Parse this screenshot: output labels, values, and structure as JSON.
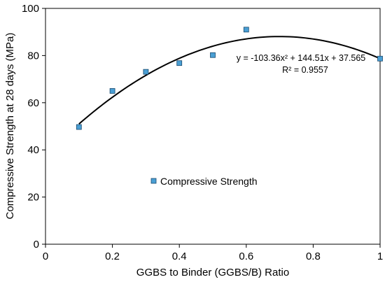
{
  "chart_data": {
    "type": "scatter",
    "title": "",
    "xlabel": "GGBS to Binder (GGBS/B) Ratio",
    "ylabel": "Compressive Strength at 28 days (MPa)",
    "xlim": [
      0,
      1
    ],
    "ylim": [
      0,
      100
    ],
    "x_ticks": [
      0,
      0.2,
      0.4,
      0.6,
      0.8,
      1
    ],
    "x_tick_labels": [
      "0",
      "0.2",
      "0.4",
      "0.6",
      "0.8",
      "1"
    ],
    "y_ticks": [
      0,
      20,
      40,
      60,
      80,
      100
    ],
    "y_tick_labels": [
      "0",
      "20",
      "40",
      "60",
      "80",
      "100"
    ],
    "grid": false,
    "legend_position": "lower-left",
    "series": [
      {
        "name": "Compressive Strength",
        "color": "#4a9fd4",
        "x": [
          0.1,
          0.2,
          0.3,
          0.4,
          0.5,
          0.6,
          1.0
        ],
        "y": [
          49.7,
          65.0,
          73.1,
          76.8,
          80.2,
          91.0,
          78.7
        ]
      }
    ],
    "trendline": {
      "type": "polynomial",
      "coefficients": [
        -103.36,
        144.51,
        37.565
      ],
      "x_range": [
        0.1,
        1.0
      ],
      "color": "#000000"
    },
    "annotations": {
      "equation": "y = -103.36x² + 144.51x + 37.565",
      "r_squared": "R² = 0.9557"
    }
  }
}
